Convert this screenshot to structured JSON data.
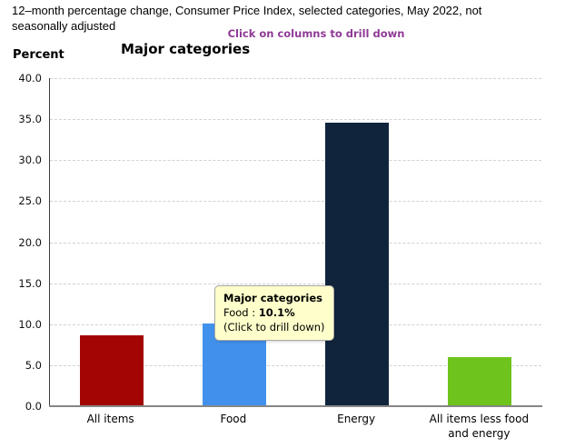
{
  "header": {
    "title": "12–month percentage change, Consumer Price Index, selected categories, May 2022, not seasonally adjusted",
    "drilldown_hint": "Click on columns to drill down",
    "hint_color": "#8F3A96"
  },
  "chart_data": {
    "type": "bar",
    "title": "Major categories",
    "ylabel": "Percent",
    "categories": [
      "All items",
      "Food",
      "Energy",
      "All items less food and energy"
    ],
    "values": [
      8.6,
      10.1,
      34.6,
      6.0
    ],
    "colors": [
      "#A30505",
      "#4191EC",
      "#10253C",
      "#6EC41C"
    ],
    "ylim": [
      0,
      40
    ],
    "ytick_step": 5,
    "ytick_labels": [
      "0.0",
      "5.0",
      "10.0",
      "15.0",
      "20.0",
      "25.0",
      "30.0",
      "35.0",
      "40.0"
    ],
    "grid": "dashed-horizontal",
    "legend": "none"
  },
  "tooltip": {
    "title": "Major categories",
    "label": "Food : ",
    "value": "10.1%",
    "hint": "(Click to drill down)",
    "bg_color": "#FFFFCB"
  }
}
